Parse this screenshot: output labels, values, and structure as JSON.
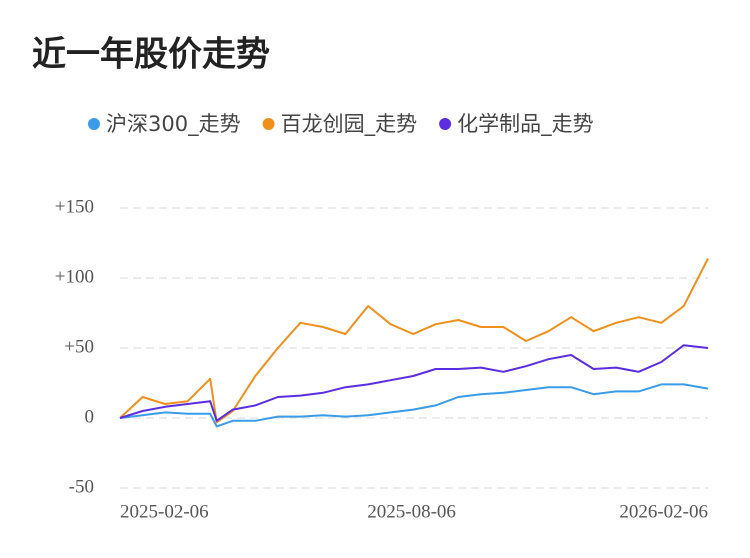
{
  "chart_data": {
    "type": "line",
    "title": "近一年股价走势",
    "x": [
      "2025-02-06",
      "2025-02-20",
      "2025-03-06",
      "2025-03-20",
      "2025-04-03",
      "2025-04-07",
      "2025-04-17",
      "2025-05-01",
      "2025-05-15",
      "2025-05-29",
      "2025-06-12",
      "2025-06-26",
      "2025-07-10",
      "2025-07-24",
      "2025-08-07",
      "2025-08-21",
      "2025-09-04",
      "2025-09-18",
      "2025-10-02",
      "2025-10-16",
      "2025-10-30",
      "2025-11-13",
      "2025-11-27",
      "2025-12-11",
      "2025-12-25",
      "2026-01-08",
      "2026-01-22",
      "2026-02-06"
    ],
    "series": [
      {
        "name": "沪深300_走势",
        "color": "#3a9be8",
        "values": [
          0,
          2,
          4,
          3,
          3,
          -6,
          -2,
          -2,
          1,
          1,
          2,
          1,
          2,
          4,
          6,
          9,
          15,
          17,
          18,
          20,
          22,
          22,
          17,
          19,
          19,
          24,
          24,
          21
        ]
      },
      {
        "name": "百龙创园_走势",
        "color": "#f0901a",
        "values": [
          0,
          15,
          10,
          12,
          28,
          -3,
          5,
          30,
          50,
          68,
          65,
          60,
          80,
          67,
          60,
          67,
          70,
          65,
          65,
          55,
          62,
          72,
          62,
          68,
          72,
          68,
          80,
          114
        ]
      },
      {
        "name": "化学制品_走势",
        "color": "#5a2de0",
        "values": [
          0,
          5,
          8,
          10,
          12,
          -2,
          6,
          9,
          15,
          16,
          18,
          22,
          24,
          27,
          30,
          35,
          35,
          36,
          33,
          37,
          42,
          45,
          35,
          36,
          33,
          40,
          52,
          50
        ]
      }
    ],
    "xlim": [
      "2025-02-06",
      "2026-02-06"
    ],
    "xticks": [
      "2025-02-06",
      "2025-08-06",
      "2026-02-06"
    ],
    "ylim": [
      -50,
      150
    ],
    "yticks": [
      {
        "value": 150,
        "label": "+150"
      },
      {
        "value": 100,
        "label": "+100"
      },
      {
        "value": 50,
        "label": "+50"
      },
      0,
      -50
    ],
    "grid": true
  }
}
